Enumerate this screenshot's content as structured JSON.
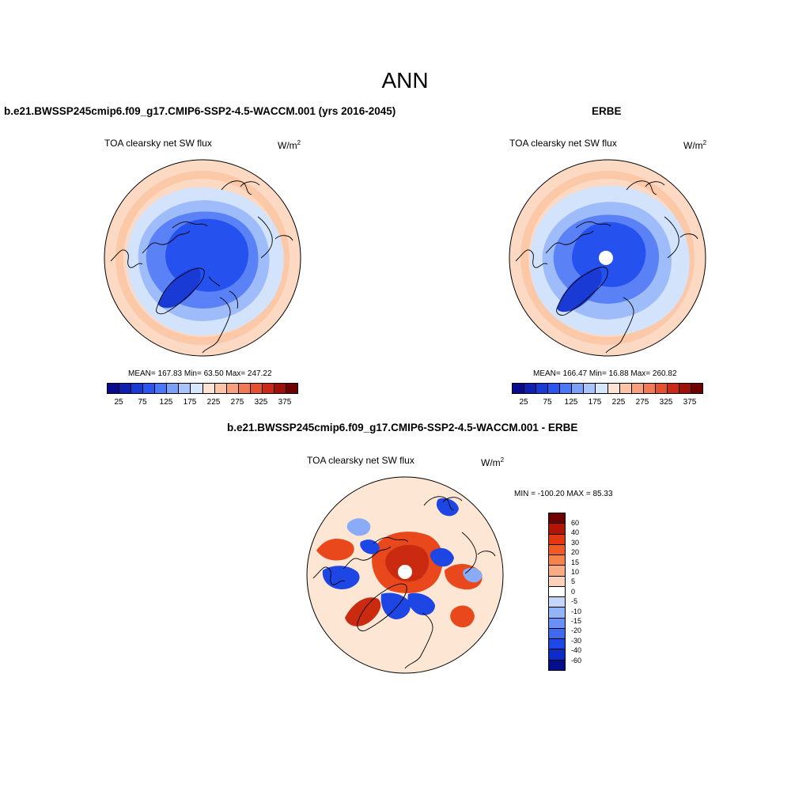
{
  "figure": {
    "title": "ANN"
  },
  "panels": [
    {
      "case_title": "b.e21.BWSSP245cmip6.f09_g17.CMIP6-SSP2-4.5-WACCM.001 (yrs 2016-2045)",
      "label": "TOA clearsky net SW flux",
      "units": "W/m",
      "units_exp": "2",
      "stats": "MEAN= 167.83  Min=  63.50  Max= 247.22"
    },
    {
      "case_title": "ERBE",
      "label": "TOA clearsky net SW flux",
      "units": "W/m",
      "units_exp": "2",
      "stats": "MEAN= 166.47  Min=  16.88  Max= 260.82"
    },
    {
      "case_title": "b.e21.BWSSP245cmip6.f09_g17.CMIP6-SSP2-4.5-WACCM.001 - ERBE",
      "label": "TOA clearsky net SW flux",
      "units": "W/m",
      "units_exp": "2",
      "stats": "MIN = -100.20 MAX =  85.33"
    }
  ],
  "colorbars": {
    "absolute": {
      "colors": [
        "#0a0a8c",
        "#0f1fb4",
        "#1a3ad6",
        "#2a55f0",
        "#4a78f8",
        "#7aa0fa",
        "#a8c4fb",
        "#d6e6fc",
        "#fde4d2",
        "#fbc5a8",
        "#f6a07c",
        "#f07a55",
        "#e65030",
        "#c92a18",
        "#a01008",
        "#6e0000"
      ],
      "tick_labels": [
        "25",
        "75",
        "125",
        "175",
        "225",
        "275",
        "325",
        "375"
      ]
    },
    "difference": {
      "colors": [
        "#6e0000",
        "#b01505",
        "#e0380f",
        "#f25a25",
        "#f5834f",
        "#f9ab82",
        "#fcd2b8",
        "#ffffff",
        "#c4d7fb",
        "#94b3f8",
        "#6a90f5",
        "#3f6af0",
        "#1f47e6",
        "#0e2cc4",
        "#050f8c"
      ],
      "tick_labels": [
        "60",
        "40",
        "30",
        "20",
        "15",
        "10",
        "5",
        "0",
        "-5",
        "-10",
        "-15",
        "-20",
        "-30",
        "-40",
        "-60"
      ]
    }
  },
  "map_colors": {
    "outer_ring": "#fcd9c2",
    "outer_ring_2": "#fbc8a8",
    "subpolar": "#d3e3fc",
    "mid": "#9fbcfa",
    "inner": "#5a82f6",
    "core": "#2552ef",
    "deep_core": "#1a3ad6",
    "diff_background": "#fde6d4",
    "diff_red": "#e8481c",
    "diff_dark_red": "#c92a10",
    "diff_blue": "#1e46e4",
    "diff_light_blue": "#8aabf7"
  }
}
